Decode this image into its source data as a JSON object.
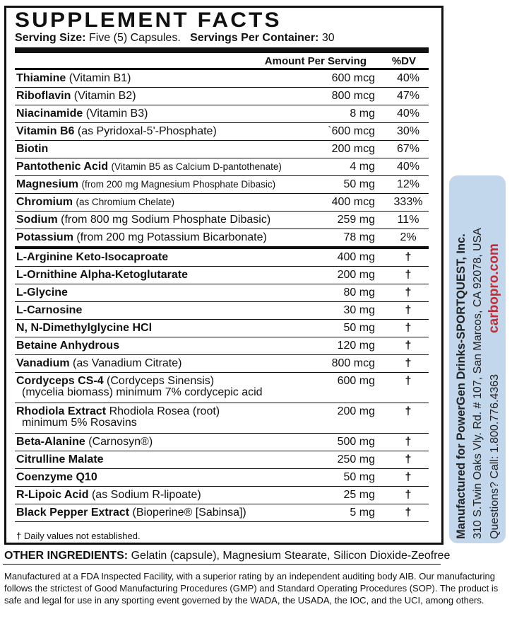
{
  "header": {
    "title": "SUPPLEMENT FACTS",
    "serving_size_label": "Serving Size:",
    "serving_size": "Five (5) Capsules.",
    "servings_label": "Servings Per Container:",
    "servings": "30"
  },
  "columns": {
    "amount": "Amount Per Serving",
    "dv": "%DV"
  },
  "vitamins": [
    {
      "name": "Thiamine",
      "detail": "(Vitamin B1)",
      "amount": "600 mcg",
      "dv": "40%"
    },
    {
      "name": "Riboflavin",
      "detail": "(Vitamin B2)",
      "amount": "800 mcg",
      "dv": "47%"
    },
    {
      "name": "Niacinamide",
      "detail": "(Vitamin B3)",
      "amount": "8 mg",
      "dv": "40%"
    },
    {
      "name": "Vitamin B6",
      "detail": "(as Pyridoxal-5'-Phosphate)",
      "amount": "`600 mcg",
      "dv": "30%"
    },
    {
      "name": "Biotin",
      "detail": "",
      "amount": "200 mcg",
      "dv": "67%"
    },
    {
      "name": "Pantothenic Acid",
      "detail": "(Vitamin B5 as Calcium D-pantothenate)",
      "amount": "4 mg",
      "dv": "40%"
    },
    {
      "name": "Magnesium",
      "detail": "(from 200 mg Magnesium Phosphate Dibasic)",
      "amount": "50 mg",
      "dv": "12%"
    },
    {
      "name": "Chromium",
      "detail": "(as Chromium Chelate)",
      "amount": "400 mcg",
      "dv": "333%"
    },
    {
      "name": "Sodium",
      "detail": "(from 800 mg Sodium Phosphate Dibasic)",
      "amount": "259 mg",
      "dv": "11%"
    },
    {
      "name": "Potassium",
      "detail": "(from 200 mg Potassium Bicarbonate)",
      "amount": "78 mg",
      "dv": "2%"
    }
  ],
  "ingredients": [
    {
      "name": "L-Arginine Keto-Isocaproate",
      "amount": "400 mg",
      "dv": "†"
    },
    {
      "name": "L-Ornithine Alpha-Ketoglutarate",
      "amount": "200 mg",
      "dv": "†"
    },
    {
      "name": "L-Glycine",
      "amount": "80 mg",
      "dv": "†"
    },
    {
      "name": "L-Carnosine",
      "amount": "30 mg",
      "dv": "†"
    },
    {
      "name": "N, N-Dimethylglycine HCl",
      "amount": "50 mg",
      "dv": "†"
    },
    {
      "name": "Betaine Anhydrous",
      "amount": "120 mg",
      "dv": "†"
    },
    {
      "name": "Vanadium",
      "detail": "(as Vanadium Citrate)",
      "amount": "800 mcg",
      "dv": "†"
    },
    {
      "name": "Cordyceps CS-4",
      "detail": "(Cordyceps Sinensis)",
      "line2": "(mycelia biomass) minimum 7% cordycepic acid",
      "amount": "600 mg",
      "dv": "†"
    },
    {
      "name": "Rhodiola Extract",
      "detail": "Rhodiola Rosea (root)",
      "line2": "minimum 5% Rosavins",
      "amount": "200 mg",
      "dv": "†"
    },
    {
      "name": "Beta-Alanine",
      "detail": "(Carnosyn®)",
      "amount": "500 mg",
      "dv": "†"
    },
    {
      "name": "Citrulline Malate",
      "amount": "250 mg",
      "dv": "†"
    },
    {
      "name": "Coenzyme Q10",
      "amount": "50 mg",
      "dv": "†"
    },
    {
      "name": "R-Lipoic Acid",
      "detail": "(as Sodium R-lipoate)",
      "amount": "25 mg",
      "dv": "†"
    },
    {
      "name": "Black Pepper Extract",
      "detail": "(Bioperine® [Sabinsa])",
      "amount": "5 mg",
      "dv": "†"
    }
  ],
  "footnote": "† Daily values not established.",
  "other_ingredients": {
    "label": "OTHER INGREDIENTS:",
    "text": "Gelatin (capsule), Magnesium Stearate, Silicon Dioxide-Zeofree"
  },
  "disclaimer": "Manufactured at a FDA Inspected Facility, with a superior rating by an independent auditing body AIB. Our manufacturing follows the strictest of Good Manufacturing Procedures (GMP) and Standard Operating Procedures (SOP). The product is safe and legal for use in any sporting event governed by the WADA, the USADA, the IOC, and the UCI, among others.",
  "side_panel": {
    "manufacturer": "Manufactured for PowerGen Drinks-SPORTQUEST, Inc.",
    "address": "310 S.Twin Oaks Vly. Rd. # 107, San Marcos, CA 92078, USA",
    "contact": "Questions?  Call: 1.800.776.4363",
    "website": "carbopro.com"
  }
}
